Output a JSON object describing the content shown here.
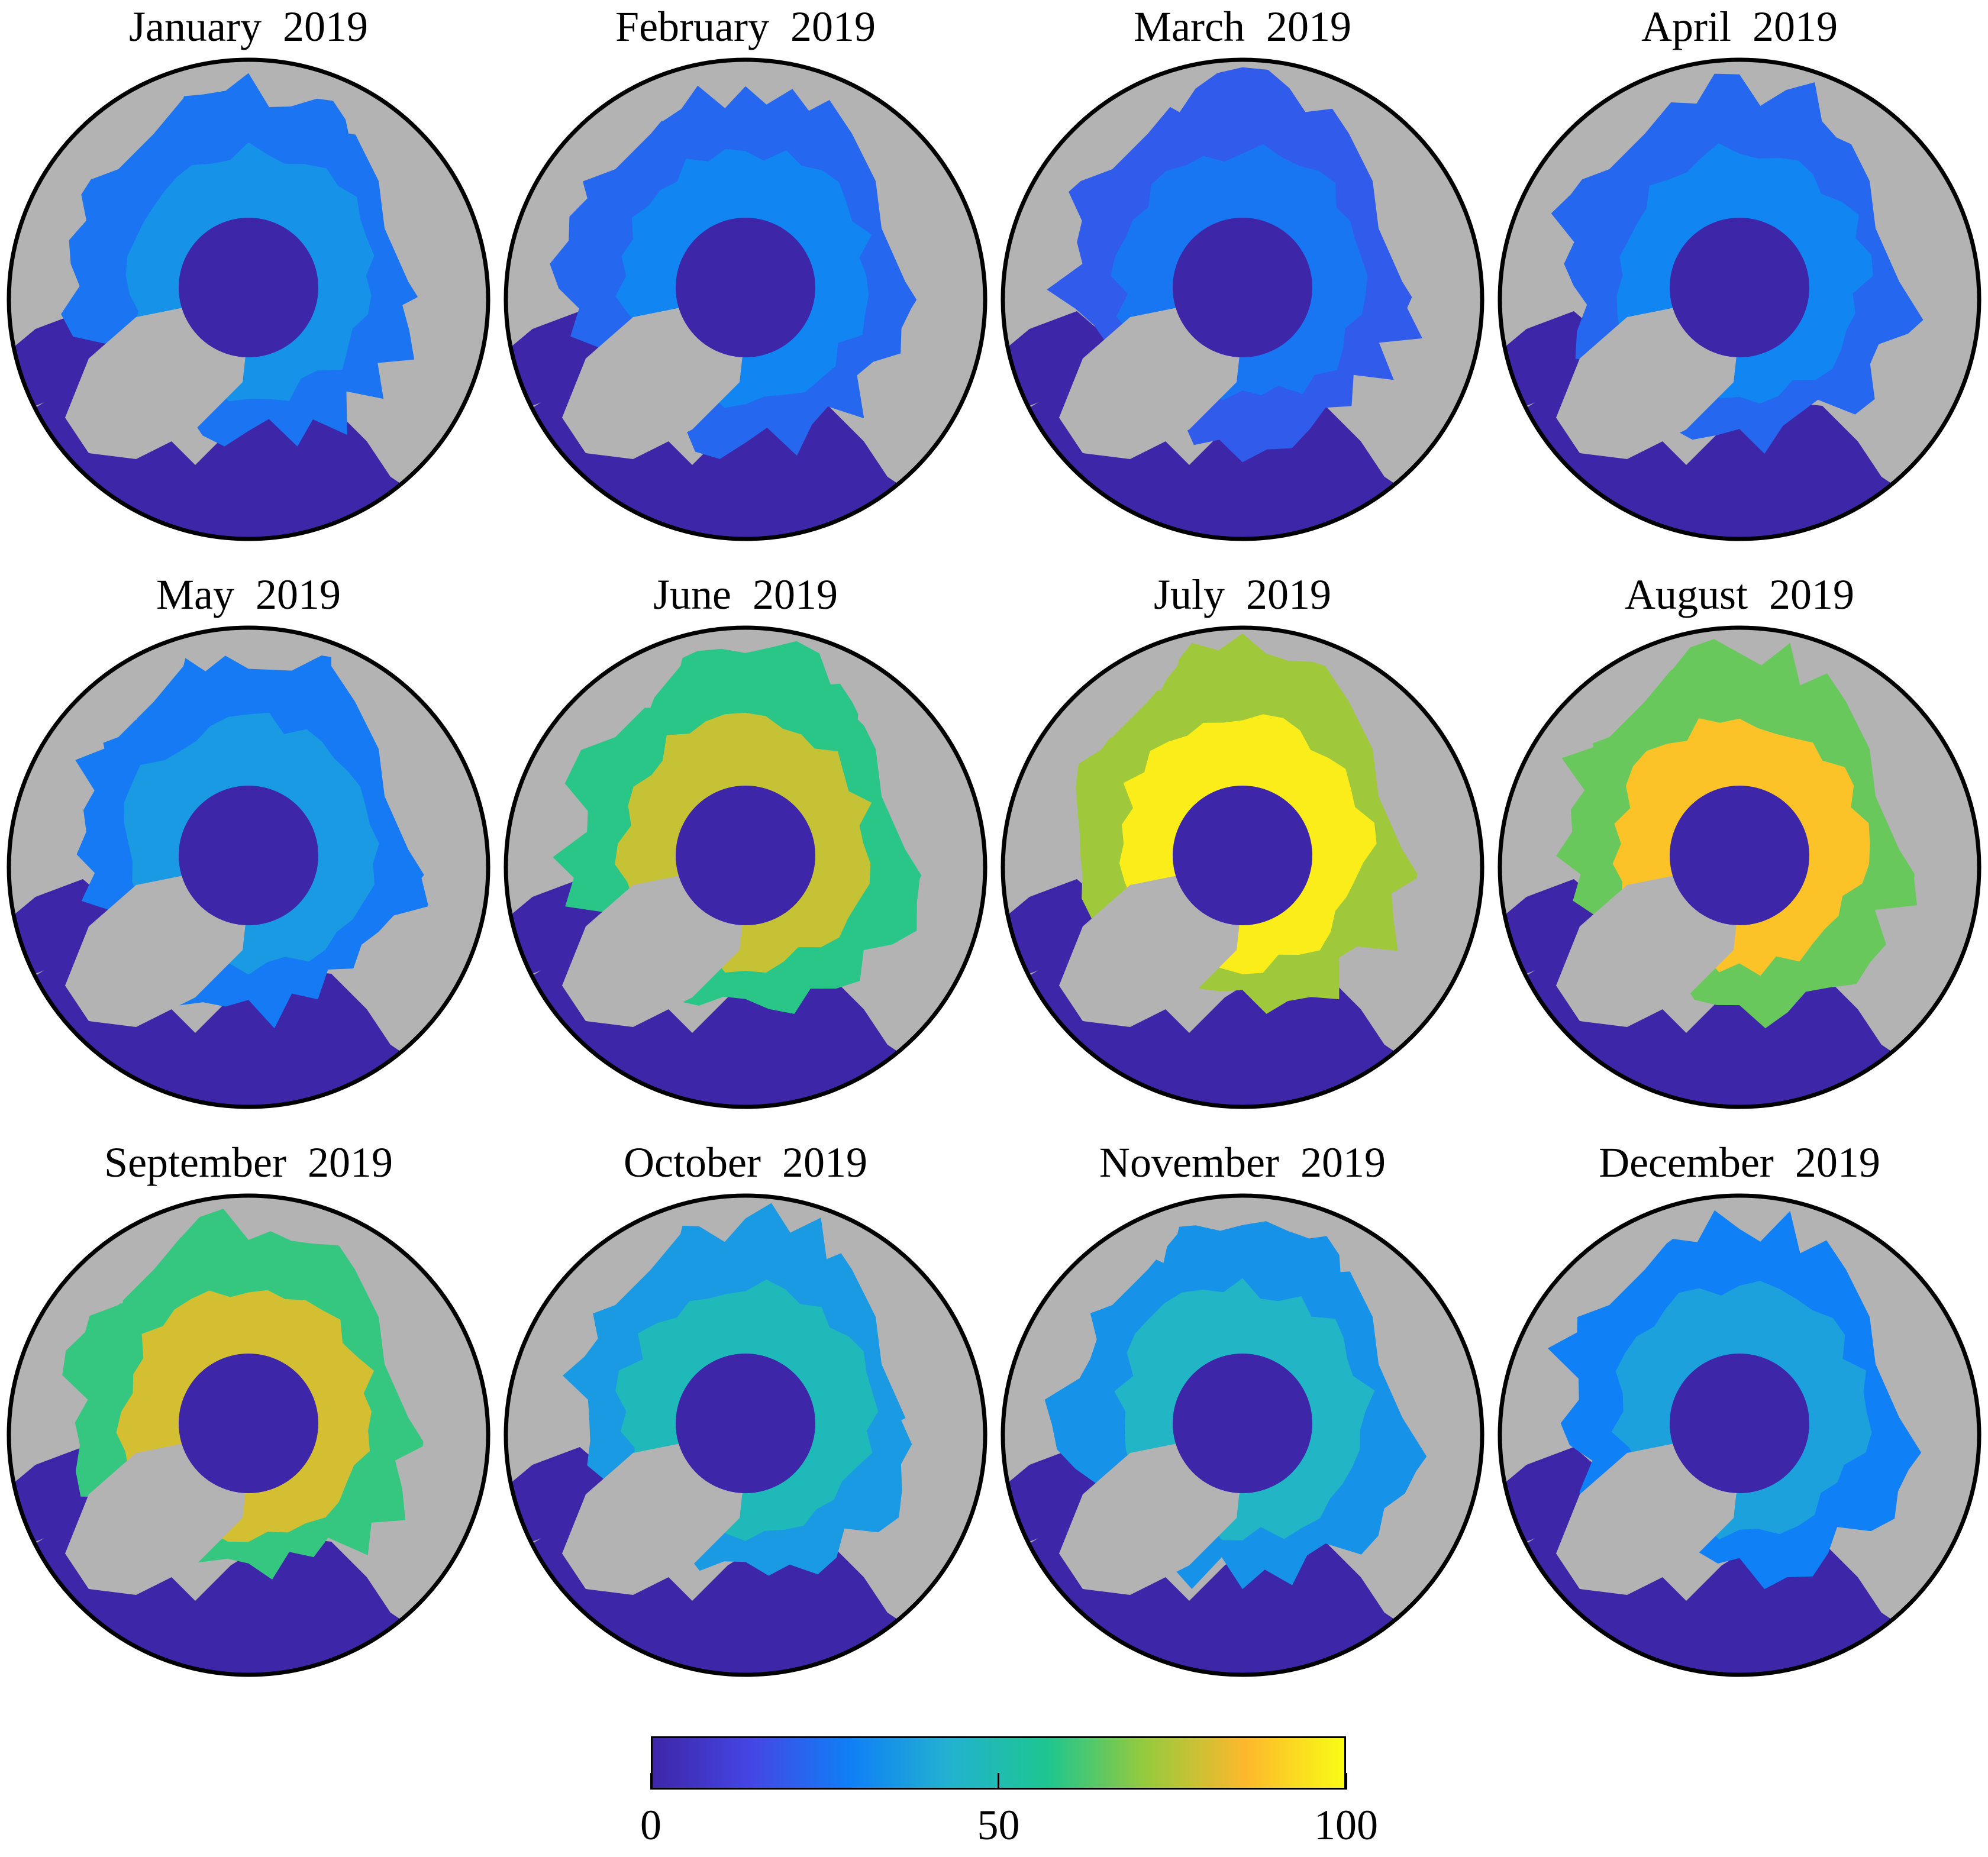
{
  "panels": [
    {
      "title": "January  2019",
      "concentration_level": 0.34
    },
    {
      "title": "February  2019",
      "concentration_level": 0.3
    },
    {
      "title": "March  2019",
      "concentration_level": 0.26
    },
    {
      "title": "April  2019",
      "concentration_level": 0.3
    },
    {
      "title": "May  2019",
      "concentration_level": 0.36
    },
    {
      "title": "June  2019",
      "concentration_level": 0.78
    },
    {
      "title": "July  2019",
      "concentration_level": 0.97
    },
    {
      "title": "August  2019",
      "concentration_level": 0.88
    },
    {
      "title": "September  2019",
      "concentration_level": 0.8
    },
    {
      "title": "October  2019",
      "concentration_level": 0.48
    },
    {
      "title": "November  2019",
      "concentration_level": 0.45
    },
    {
      "title": "December  2019",
      "concentration_level": 0.38
    }
  ],
  "colorbar": {
    "min": 0,
    "max": 100,
    "ticks": [
      {
        "value": 0,
        "label": "0"
      },
      {
        "value": 50,
        "label": "50"
      },
      {
        "value": 100,
        "label": "100"
      }
    ],
    "colors": [
      "#3e26a8",
      "#4546e5",
      "#0f80f6",
      "#22b2d0",
      "#1dc690",
      "#97ca3c",
      "#fdb82d",
      "#f9fb15"
    ]
  },
  "map_colors": {
    "land": "#b3b3b3",
    "ocean": "#3e26a8",
    "pole_hole": "#3e26a8",
    "outline": "#000000"
  }
}
